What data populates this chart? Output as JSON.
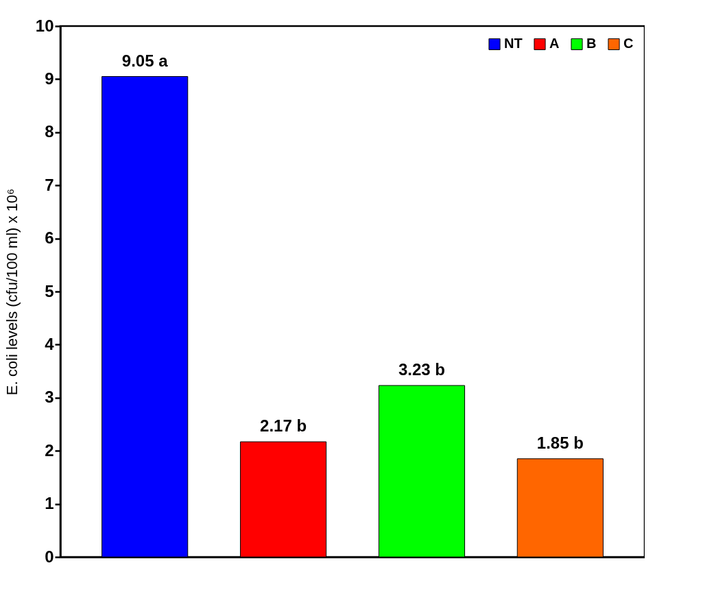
{
  "chart_data": {
    "type": "bar",
    "ylabel": "E. coli levels (cfu/100 ml) x 10⁶",
    "categories": [
      null,
      null,
      null,
      null
    ],
    "series": [
      {
        "name": "NT",
        "color": "#0000ff",
        "values": [
          9.05,
          null,
          null,
          null
        ],
        "value_labels": [
          "9.05 a",
          null,
          null,
          null
        ]
      },
      {
        "name": "A",
        "color": "#ff0000",
        "values": [
          null,
          2.17,
          null,
          null
        ],
        "value_labels": [
          null,
          "2.17 b",
          null,
          null
        ]
      },
      {
        "name": "B",
        "color": "#00ff00",
        "values": [
          null,
          null,
          3.23,
          null
        ],
        "value_labels": [
          null,
          null,
          "3.23 b",
          null
        ]
      },
      {
        "name": "C",
        "color": "#ff6600",
        "values": [
          null,
          null,
          null,
          1.85
        ],
        "value_labels": [
          null,
          null,
          null,
          "1.85 b"
        ]
      }
    ],
    "ylim": [
      0,
      10
    ],
    "yticks": [
      0,
      1,
      2,
      3,
      4,
      5,
      6,
      7,
      8,
      9,
      10
    ],
    "grid": false,
    "legend": "top right",
    "tick_labels": "y"
  }
}
